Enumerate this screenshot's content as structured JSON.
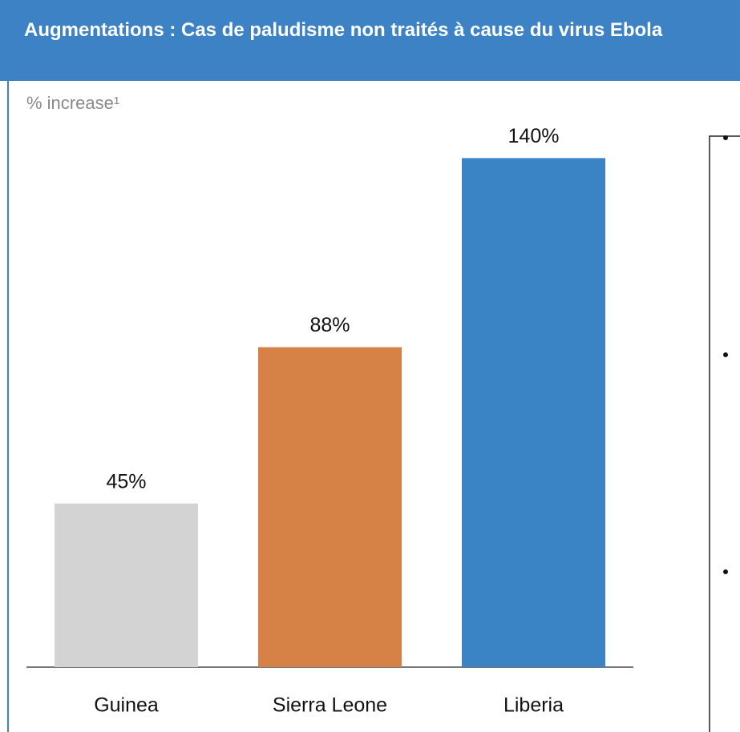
{
  "chart_data": {
    "type": "bar",
    "title": "Augmentations : Cas de paludisme non traités à cause du virus Ebola",
    "ylabel": "% increase¹",
    "categories": [
      "Guinea",
      "Sierra Leone",
      "Liberia"
    ],
    "values": [
      45,
      88,
      140
    ],
    "value_labels": [
      "45%",
      "88%",
      "140%"
    ],
    "colors": [
      "#d3d3d3",
      "#d68146",
      "#3a84c6"
    ]
  }
}
